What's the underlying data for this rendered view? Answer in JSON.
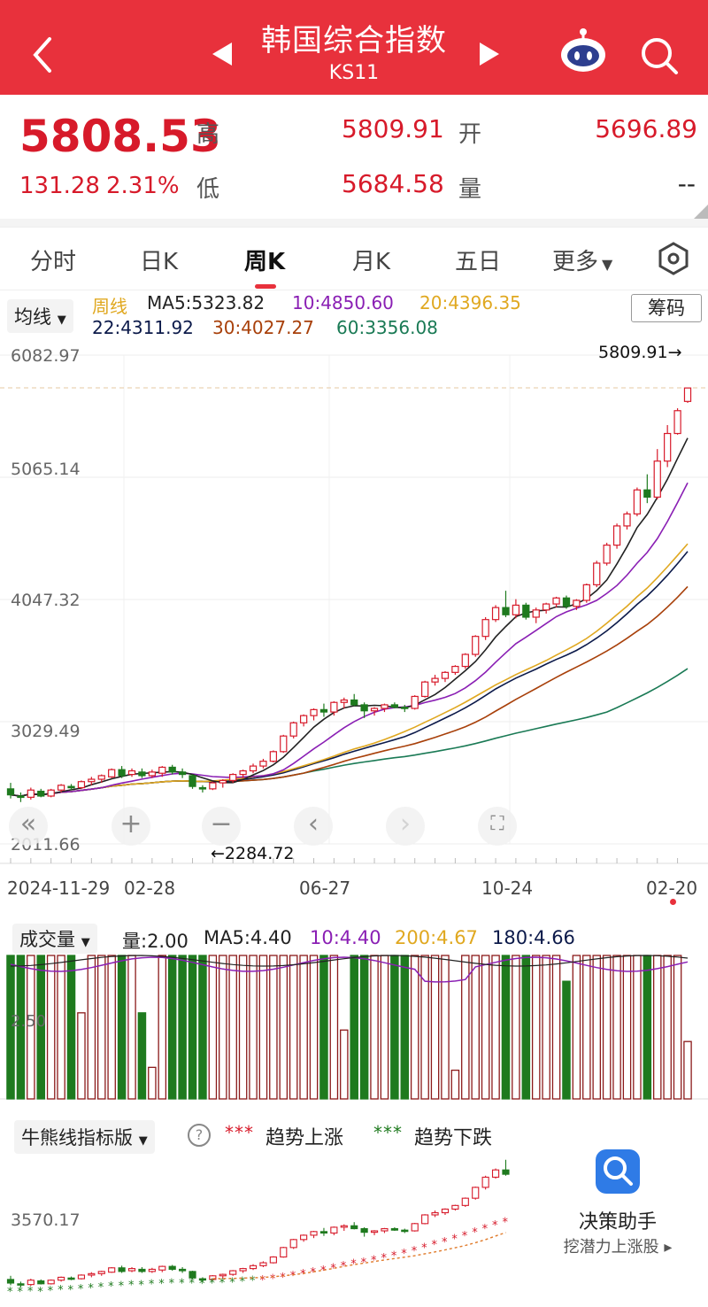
{
  "header": {
    "title": "韩国综合指数",
    "code": "KS11"
  },
  "quote": {
    "price": "5808.53",
    "change": "131.28",
    "change_pct": "2.31%",
    "high_label": "高",
    "high": "5809.91",
    "low_label": "低",
    "low": "5684.58",
    "open_label": "开",
    "open": "5696.89",
    "volume_label": "量",
    "volume": "--"
  },
  "tabs": [
    {
      "label": "分时"
    },
    {
      "label": "日K"
    },
    {
      "label": "周K"
    },
    {
      "label": "月K"
    },
    {
      "label": "五日"
    },
    {
      "label": "更多"
    }
  ],
  "legend": {
    "selector": "均线",
    "period": "周线",
    "ma5": "MA5:5323.82",
    "ma10": "10:4850.60",
    "ma20": "20:4396.35",
    "ma22": "22:4311.92",
    "ma30": "30:4027.27",
    "ma60": "60:3356.08",
    "chip_button": "筹码"
  },
  "main_chart": {
    "y_ticks": [
      "6082.97",
      "5065.14",
      "4047.32",
      "3029.49",
      "2011.66"
    ],
    "max_marker": "5809.91→",
    "min_marker": "←2284.72",
    "x_ticks": [
      "2024-11-29",
      "02-28",
      "06-27",
      "10-24",
      "02-20"
    ]
  },
  "volume": {
    "selector": "成交量",
    "vol": "量:2.00",
    "ma5": "MA5:4.40",
    "ma10": "10:4.40",
    "ma200": "200:4.67",
    "ma180": "180:4.66",
    "y_tick": "2.50"
  },
  "bull": {
    "selector": "牛熊线指标版",
    "help": "?",
    "up_label": "趋势上涨",
    "down_label": "趋势下跌",
    "y_tick": "3570.17"
  },
  "assistant": {
    "title": "决策助手",
    "subtitle": "挖潜力上涨股"
  },
  "colors": {
    "header_bg": "#e8313c",
    "up": "#d71a2a",
    "down": "#1e7a1e",
    "ma5": "#222222",
    "ma10": "#8a1fb4",
    "ma20": "#e0a820",
    "ma22": "#0c1a4a",
    "ma30": "#a8400a",
    "ma60": "#1a7a55"
  },
  "chart_data": {
    "type": "candlestick",
    "title": "韩国综合指数 周K",
    "x_ticks": [
      "2024-11-29",
      "02-28",
      "06-27",
      "10-24",
      "02-20"
    ],
    "ylim": [
      2011.66,
      6082.97
    ],
    "candles_ohlc": [
      [
        2470,
        2520,
        2390,
        2420
      ],
      [
        2410,
        2440,
        2360,
        2400
      ],
      [
        2400,
        2480,
        2380,
        2460
      ],
      [
        2450,
        2470,
        2400,
        2410
      ],
      [
        2410,
        2470,
        2400,
        2460
      ],
      [
        2460,
        2510,
        2440,
        2500
      ],
      [
        2490,
        2510,
        2460,
        2480
      ],
      [
        2480,
        2540,
        2470,
        2530
      ],
      [
        2530,
        2570,
        2500,
        2550
      ],
      [
        2550,
        2590,
        2520,
        2580
      ],
      [
        2570,
        2640,
        2560,
        2630
      ],
      [
        2630,
        2660,
        2560,
        2580
      ],
      [
        2590,
        2640,
        2570,
        2620
      ],
      [
        2610,
        2640,
        2560,
        2580
      ],
      [
        2580,
        2630,
        2560,
        2610
      ],
      [
        2600,
        2660,
        2570,
        2650
      ],
      [
        2650,
        2670,
        2590,
        2610
      ],
      [
        2610,
        2640,
        2560,
        2590
      ],
      [
        2580,
        2590,
        2470,
        2490
      ],
      [
        2480,
        2500,
        2440,
        2470
      ],
      [
        2470,
        2530,
        2460,
        2520
      ],
      [
        2520,
        2550,
        2480,
        2540
      ],
      [
        2540,
        2600,
        2520,
        2590
      ],
      [
        2590,
        2630,
        2560,
        2620
      ],
      [
        2620,
        2680,
        2600,
        2660
      ],
      [
        2660,
        2720,
        2640,
        2700
      ],
      [
        2700,
        2790,
        2690,
        2780
      ],
      [
        2780,
        2920,
        2770,
        2910
      ],
      [
        2910,
        3030,
        2890,
        3020
      ],
      [
        3020,
        3090,
        2990,
        3080
      ],
      [
        3080,
        3140,
        3040,
        3130
      ],
      [
        3130,
        3180,
        3070,
        3110
      ],
      [
        3110,
        3200,
        3080,
        3190
      ],
      [
        3190,
        3230,
        3140,
        3210
      ],
      [
        3210,
        3260,
        3160,
        3170
      ],
      [
        3170,
        3190,
        3060,
        3120
      ],
      [
        3120,
        3150,
        3080,
        3140
      ],
      [
        3140,
        3180,
        3110,
        3170
      ],
      [
        3170,
        3190,
        3140,
        3150
      ],
      [
        3150,
        3170,
        3110,
        3140
      ],
      [
        3140,
        3250,
        3130,
        3240
      ],
      [
        3240,
        3370,
        3230,
        3360
      ],
      [
        3360,
        3420,
        3330,
        3390
      ],
      [
        3390,
        3450,
        3360,
        3440
      ],
      [
        3440,
        3500,
        3420,
        3490
      ],
      [
        3490,
        3600,
        3470,
        3590
      ],
      [
        3590,
        3750,
        3570,
        3740
      ],
      [
        3740,
        3900,
        3710,
        3880
      ],
      [
        3880,
        4000,
        3860,
        3980
      ],
      [
        3980,
        4120,
        3900,
        3920
      ],
      [
        3920,
        4050,
        3890,
        4000
      ],
      [
        4000,
        4020,
        3880,
        3900
      ],
      [
        3900,
        3980,
        3850,
        3960
      ],
      [
        3960,
        4020,
        3930,
        4010
      ],
      [
        4010,
        4070,
        3980,
        4060
      ],
      [
        4060,
        4080,
        3970,
        3990
      ],
      [
        3990,
        4050,
        3960,
        4040
      ],
      [
        4040,
        4180,
        4020,
        4170
      ],
      [
        4170,
        4370,
        4150,
        4350
      ],
      [
        4350,
        4520,
        4330,
        4500
      ],
      [
        4500,
        4680,
        4470,
        4660
      ],
      [
        4660,
        4780,
        4630,
        4760
      ],
      [
        4760,
        4980,
        4740,
        4960
      ],
      [
        4960,
        5090,
        4850,
        4900
      ],
      [
        4900,
        5300,
        4880,
        5200
      ],
      [
        5200,
        5500,
        5150,
        5430
      ],
      [
        5430,
        5640,
        5420,
        5620
      ],
      [
        5697,
        5810,
        5685,
        5809
      ]
    ],
    "moving_averages": {
      "MA5": 5323.82,
      "MA10": 4850.6,
      "MA20": 4396.35,
      "MA22": 4311.92,
      "MA30": 4027.27,
      "MA60": 3356.08
    },
    "period_high": 5809.91,
    "period_low": 2284.72,
    "volume_ma": {
      "MA5": 4.4,
      "MA10": 4.4,
      "MA200": 4.67,
      "MA180": 4.66
    },
    "volume_last": 2.0
  }
}
